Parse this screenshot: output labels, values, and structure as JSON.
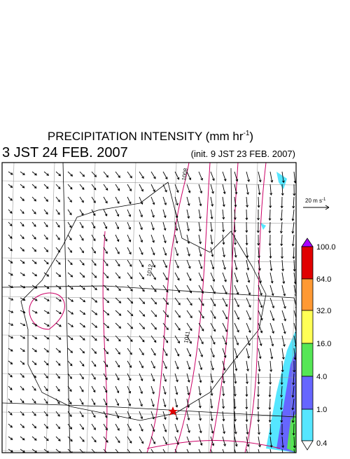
{
  "header": {
    "title": {
      "text": "PRECIPITATION INTENSITY (mm hr",
      "superscript": "-1",
      "suffix": ")"
    },
    "valid_time": "3 JST 24 FEB. 2007",
    "init_time": "(init. 9 JST 23 FEB. 2007)"
  },
  "wind_scale": {
    "text": "20 m s",
    "superscript": "-1"
  },
  "isobar_labels": [
    "1008",
    "1012",
    "1011"
  ],
  "legend": {
    "levels": [
      "100.0",
      "64.0",
      "32.0",
      "16.0",
      "4.0",
      "1.0",
      "0.4"
    ]
  }
}
